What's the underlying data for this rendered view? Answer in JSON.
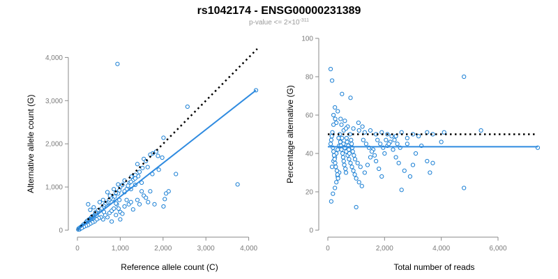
{
  "figure": {
    "title": "rs1042174 - ENSG00000231389",
    "subtitle_prefix": "p-value <= 2×10",
    "subtitle_exponent": "-311",
    "colors": {
      "points": "#1a7fd4",
      "fit_line": "#2f8be0",
      "reference_line": "#000000"
    }
  },
  "chart_data": [
    {
      "type": "scatter",
      "title": "",
      "xlabel": "Reference allele count (C)",
      "ylabel": "Alternative allele count (G)",
      "xlim": [
        0,
        4300
      ],
      "ylim": [
        0,
        4200
      ],
      "xticks": [
        0,
        1000,
        2000,
        3000,
        4000
      ],
      "xtick_labels": [
        "0",
        "1,000",
        "2,000",
        "3,000",
        "4,000"
      ],
      "yticks": [
        0,
        1000,
        2000,
        3000,
        4000
      ],
      "ytick_labels": [
        "0",
        "1,000",
        "2,000",
        "3,000",
        "4,000"
      ],
      "fit_line": {
        "x": [
          0,
          4170
        ],
        "y": [
          0,
          3240
        ]
      },
      "reference_line": {
        "x": [
          0,
          4200
        ],
        "y": [
          0,
          4200
        ]
      },
      "grid": false,
      "points": [
        [
          935,
          3850
        ],
        [
          2570,
          2860
        ],
        [
          4170,
          3240
        ],
        [
          3740,
          1060
        ],
        [
          2300,
          1300
        ],
        [
          2010,
          2140
        ],
        [
          1980,
          1680
        ],
        [
          2070,
          850
        ],
        [
          2040,
          720
        ],
        [
          2130,
          900
        ],
        [
          2010,
          550
        ],
        [
          1760,
          1780
        ],
        [
          1840,
          1820
        ],
        [
          1700,
          1750
        ],
        [
          1880,
          1720
        ],
        [
          1640,
          1460
        ],
        [
          1550,
          1650
        ],
        [
          1520,
          1440
        ],
        [
          1400,
          1530
        ],
        [
          1420,
          1250
        ],
        [
          1350,
          1280
        ],
        [
          1260,
          1240
        ],
        [
          1220,
          1100
        ],
        [
          1180,
          1030
        ],
        [
          1300,
          1160
        ],
        [
          1150,
          950
        ],
        [
          1100,
          880
        ],
        [
          1000,
          1000
        ],
        [
          980,
          920
        ],
        [
          950,
          850
        ],
        [
          900,
          870
        ],
        [
          870,
          780
        ],
        [
          820,
          720
        ],
        [
          780,
          750
        ],
        [
          740,
          700
        ],
        [
          720,
          640
        ],
        [
          680,
          620
        ],
        [
          650,
          600
        ],
        [
          620,
          560
        ],
        [
          600,
          520
        ],
        [
          580,
          480
        ],
        [
          560,
          500
        ],
        [
          520,
          450
        ],
        [
          500,
          430
        ],
        [
          480,
          460
        ],
        [
          460,
          400
        ],
        [
          440,
          380
        ],
        [
          420,
          410
        ],
        [
          400,
          350
        ],
        [
          380,
          330
        ],
        [
          360,
          300
        ],
        [
          340,
          320
        ],
        [
          320,
          290
        ],
        [
          300,
          260
        ],
        [
          280,
          250
        ],
        [
          260,
          240
        ],
        [
          240,
          200
        ],
        [
          220,
          210
        ],
        [
          200,
          180
        ],
        [
          180,
          150
        ],
        [
          160,
          140
        ],
        [
          140,
          130
        ],
        [
          120,
          100
        ],
        [
          100,
          90
        ],
        [
          80,
          70
        ],
        [
          60,
          60
        ],
        [
          40,
          30
        ],
        [
          30,
          40
        ],
        [
          20,
          15
        ],
        [
          50,
          20
        ],
        [
          70,
          40
        ],
        [
          90,
          60
        ],
        [
          110,
          80
        ],
        [
          130,
          70
        ],
        [
          150,
          100
        ],
        [
          170,
          110
        ],
        [
          190,
          130
        ],
        [
          210,
          150
        ],
        [
          230,
          160
        ],
        [
          250,
          170
        ],
        [
          270,
          190
        ],
        [
          290,
          220
        ],
        [
          310,
          210
        ],
        [
          330,
          230
        ],
        [
          350,
          250
        ],
        [
          370,
          270
        ],
        [
          390,
          280
        ],
        [
          410,
          300
        ],
        [
          430,
          320
        ],
        [
          450,
          340
        ],
        [
          250,
          600
        ],
        [
          300,
          470
        ],
        [
          380,
          530
        ],
        [
          520,
          650
        ],
        [
          600,
          700
        ],
        [
          700,
          880
        ],
        [
          760,
          800
        ],
        [
          850,
          950
        ],
        [
          950,
          1060
        ],
        [
          1050,
          1050
        ],
        [
          1100,
          1150
        ],
        [
          1250,
          1120
        ],
        [
          1350,
          1200
        ],
        [
          1450,
          1350
        ],
        [
          1600,
          1600
        ],
        [
          960,
          500
        ],
        [
          1000,
          420
        ],
        [
          1100,
          550
        ],
        [
          1050,
          380
        ],
        [
          1200,
          600
        ],
        [
          1150,
          700
        ],
        [
          1250,
          650
        ],
        [
          1300,
          480
        ],
        [
          1400,
          700
        ],
        [
          1450,
          600
        ],
        [
          1500,
          900
        ],
        [
          1550,
          800
        ],
        [
          1600,
          750
        ],
        [
          1700,
          900
        ],
        [
          1800,
          600
        ],
        [
          1650,
          650
        ],
        [
          700,
          300
        ],
        [
          750,
          400
        ],
        [
          800,
          450
        ],
        [
          850,
          500
        ],
        [
          900,
          350
        ],
        [
          920,
          600
        ],
        [
          980,
          700
        ],
        [
          600,
          250
        ],
        [
          650,
          350
        ],
        [
          550,
          300
        ],
        [
          500,
          280
        ],
        [
          450,
          250
        ],
        [
          400,
          200
        ],
        [
          350,
          180
        ],
        [
          300,
          150
        ],
        [
          250,
          120
        ],
        [
          200,
          100
        ],
        [
          150,
          80
        ],
        [
          100,
          50
        ],
        [
          800,
          200
        ],
        [
          1000,
          250
        ],
        [
          900,
          620
        ],
        [
          1100,
          900
        ],
        [
          1250,
          950
        ],
        [
          1350,
          1050
        ],
        [
          1500,
          1100
        ],
        [
          1900,
          1400
        ],
        [
          1750,
          1300
        ],
        [
          620,
          420
        ]
      ]
    },
    {
      "type": "scatter",
      "title": "",
      "xlabel": "Total number of reads",
      "ylabel": "Percentage alternative (G)",
      "xlim": [
        0,
        7500
      ],
      "ylim": [
        0,
        100
      ],
      "xticks": [
        0,
        2000,
        4000,
        6000
      ],
      "xtick_labels": [
        "0",
        "2,000",
        "4,000",
        "6,000"
      ],
      "yticks": [
        0,
        20,
        40,
        60,
        80,
        100
      ],
      "ytick_labels": [
        "0",
        "20",
        "40",
        "60",
        "80",
        "100"
      ],
      "fit_line": {
        "x": [
          0,
          7400
        ],
        "y": [
          43.5,
          43.5
        ]
      },
      "reference_line": {
        "x": [
          0,
          7400
        ],
        "y": [
          50,
          50
        ]
      },
      "grid": false,
      "points": [
        [
          100,
          84
        ],
        [
          150,
          78
        ],
        [
          4800,
          80
        ],
        [
          500,
          71
        ],
        [
          800,
          69
        ],
        [
          250,
          64
        ],
        [
          350,
          62
        ],
        [
          450,
          58
        ],
        [
          600,
          57
        ],
        [
          300,
          56
        ],
        [
          200,
          55
        ],
        [
          700,
          54
        ],
        [
          900,
          53
        ],
        [
          1100,
          52
        ],
        [
          1300,
          51
        ],
        [
          1500,
          52
        ],
        [
          1700,
          50
        ],
        [
          1900,
          51
        ],
        [
          2100,
          50
        ],
        [
          2400,
          49
        ],
        [
          2600,
          51
        ],
        [
          2800,
          48
        ],
        [
          3000,
          50
        ],
        [
          3200,
          49
        ],
        [
          3500,
          51
        ],
        [
          3700,
          50
        ],
        [
          4100,
          51
        ],
        [
          5400,
          52
        ],
        [
          7400,
          43
        ],
        [
          4800,
          22
        ],
        [
          1000,
          12
        ],
        [
          120,
          15
        ],
        [
          180,
          19
        ],
        [
          250,
          22
        ],
        [
          300,
          25
        ],
        [
          350,
          28
        ],
        [
          400,
          30
        ],
        [
          150,
          33
        ],
        [
          200,
          36
        ],
        [
          250,
          38
        ],
        [
          300,
          40
        ],
        [
          350,
          42
        ],
        [
          400,
          44
        ],
        [
          450,
          46
        ],
        [
          500,
          48
        ],
        [
          550,
          45
        ],
        [
          600,
          43
        ],
        [
          650,
          41
        ],
        [
          700,
          39
        ],
        [
          750,
          37
        ],
        [
          800,
          35
        ],
        [
          850,
          33
        ],
        [
          900,
          31
        ],
        [
          950,
          29
        ],
        [
          1000,
          27
        ],
        [
          1100,
          25
        ],
        [
          1200,
          23
        ],
        [
          1300,
          30
        ],
        [
          1400,
          34
        ],
        [
          1500,
          38
        ],
        [
          1600,
          42
        ],
        [
          1700,
          36
        ],
        [
          1800,
          32
        ],
        [
          1900,
          28
        ],
        [
          2000,
          40
        ],
        [
          2100,
          44
        ],
        [
          2200,
          46
        ],
        [
          2300,
          42
        ],
        [
          2400,
          38
        ],
        [
          2500,
          35
        ],
        [
          2600,
          21
        ],
        [
          2700,
          31
        ],
        [
          2800,
          45
        ],
        [
          2900,
          28
        ],
        [
          3000,
          34
        ],
        [
          3100,
          40
        ],
        [
          3300,
          44
        ],
        [
          3500,
          36
        ],
        [
          3600,
          30
        ],
        [
          3700,
          35
        ],
        [
          4000,
          46
        ],
        [
          100,
          45
        ],
        [
          120,
          47
        ],
        [
          140,
          49
        ],
        [
          160,
          51
        ],
        [
          180,
          43
        ],
        [
          200,
          41
        ],
        [
          220,
          39
        ],
        [
          240,
          37
        ],
        [
          260,
          35
        ],
        [
          280,
          33
        ],
        [
          320,
          31
        ],
        [
          340,
          29
        ],
        [
          360,
          27
        ],
        [
          380,
          48
        ],
        [
          420,
          50
        ],
        [
          440,
          46
        ],
        [
          460,
          44
        ],
        [
          480,
          42
        ],
        [
          520,
          40
        ],
        [
          540,
          38
        ],
        [
          560,
          36
        ],
        [
          580,
          34
        ],
        [
          620,
          32
        ],
        [
          640,
          30
        ],
        [
          660,
          48
        ],
        [
          680,
          46
        ],
        [
          720,
          44
        ],
        [
          740,
          42
        ],
        [
          760,
          40
        ],
        [
          780,
          50
        ],
        [
          820,
          47
        ],
        [
          840,
          45
        ],
        [
          860,
          43
        ],
        [
          880,
          41
        ],
        [
          920,
          39
        ],
        [
          960,
          37
        ],
        [
          1050,
          35
        ],
        [
          1150,
          33
        ],
        [
          1250,
          47
        ],
        [
          1350,
          45
        ],
        [
          1450,
          43
        ],
        [
          1550,
          41
        ],
        [
          1650,
          39
        ],
        [
          1750,
          47
        ],
        [
          1850,
          45
        ],
        [
          1950,
          43
        ],
        [
          2050,
          47
        ],
        [
          2150,
          45
        ],
        [
          2250,
          49
        ],
        [
          2350,
          47
        ],
        [
          2450,
          45
        ],
        [
          2550,
          43
        ],
        [
          1080,
          56
        ],
        [
          1220,
          54
        ],
        [
          560,
          52
        ],
        [
          480,
          55
        ],
        [
          640,
          53
        ],
        [
          200,
          60
        ],
        [
          260,
          58
        ]
      ]
    }
  ]
}
